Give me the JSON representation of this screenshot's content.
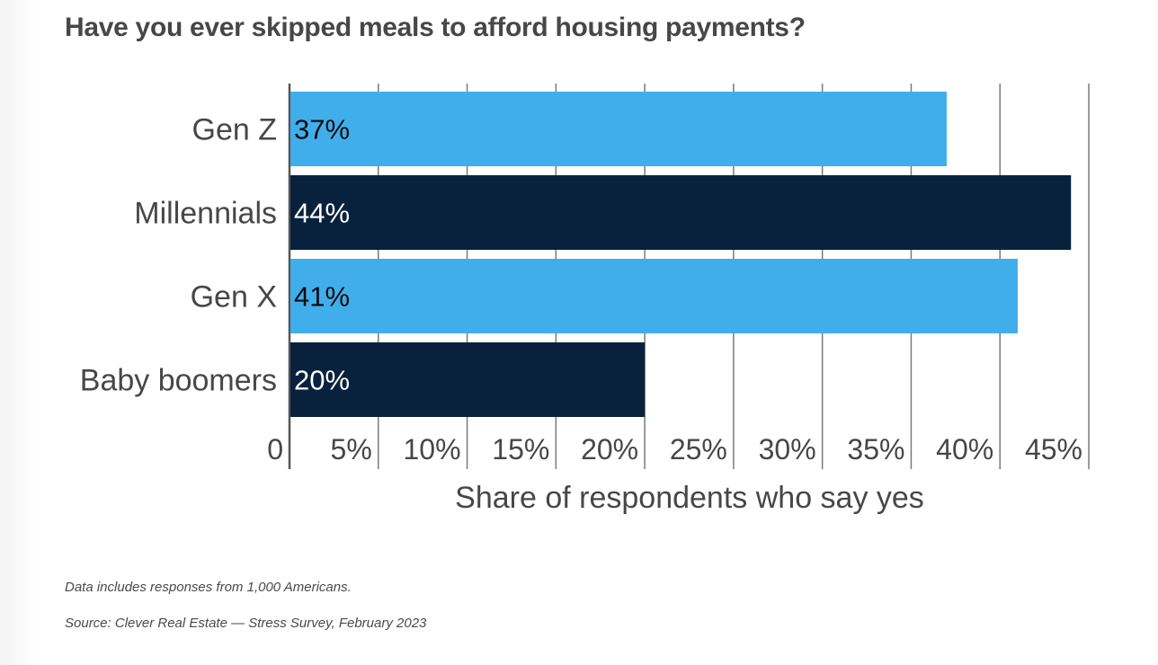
{
  "chart_data": {
    "type": "bar",
    "orientation": "horizontal",
    "title": "Have you ever skipped meals to afford housing payments?",
    "categories": [
      "Gen Z",
      "Millennials",
      "Gen X",
      "Baby boomers"
    ],
    "values": [
      37,
      44,
      41,
      20
    ],
    "value_labels": [
      "37%",
      "44%",
      "41%",
      "20%"
    ],
    "xlabel": "Share of respondents who say yes",
    "ylabel": "",
    "xlim": [
      0,
      45
    ],
    "x_ticks": [
      0,
      5,
      10,
      15,
      20,
      25,
      30,
      35,
      40,
      45
    ],
    "x_tick_labels": [
      "0",
      "5%",
      "10%",
      "15%",
      "20%",
      "25%",
      "30%",
      "35%",
      "40%",
      "45%"
    ],
    "grid": "vertical",
    "legend": "none",
    "bar_colors": [
      "#41aeec",
      "#08213d",
      "#41aeec",
      "#08213d"
    ],
    "label_colors": [
      "#0d0d0d",
      "#ffffff",
      "#0d0d0d",
      "#ffffff"
    ]
  },
  "notes": [
    "Data includes responses from 1,000 Americans.",
    "Source: Clever Real Estate — Stress Survey, February 2023"
  ],
  "colors": {
    "text": "#474747",
    "grid": "#7a7a7a",
    "axis": "#555555"
  }
}
